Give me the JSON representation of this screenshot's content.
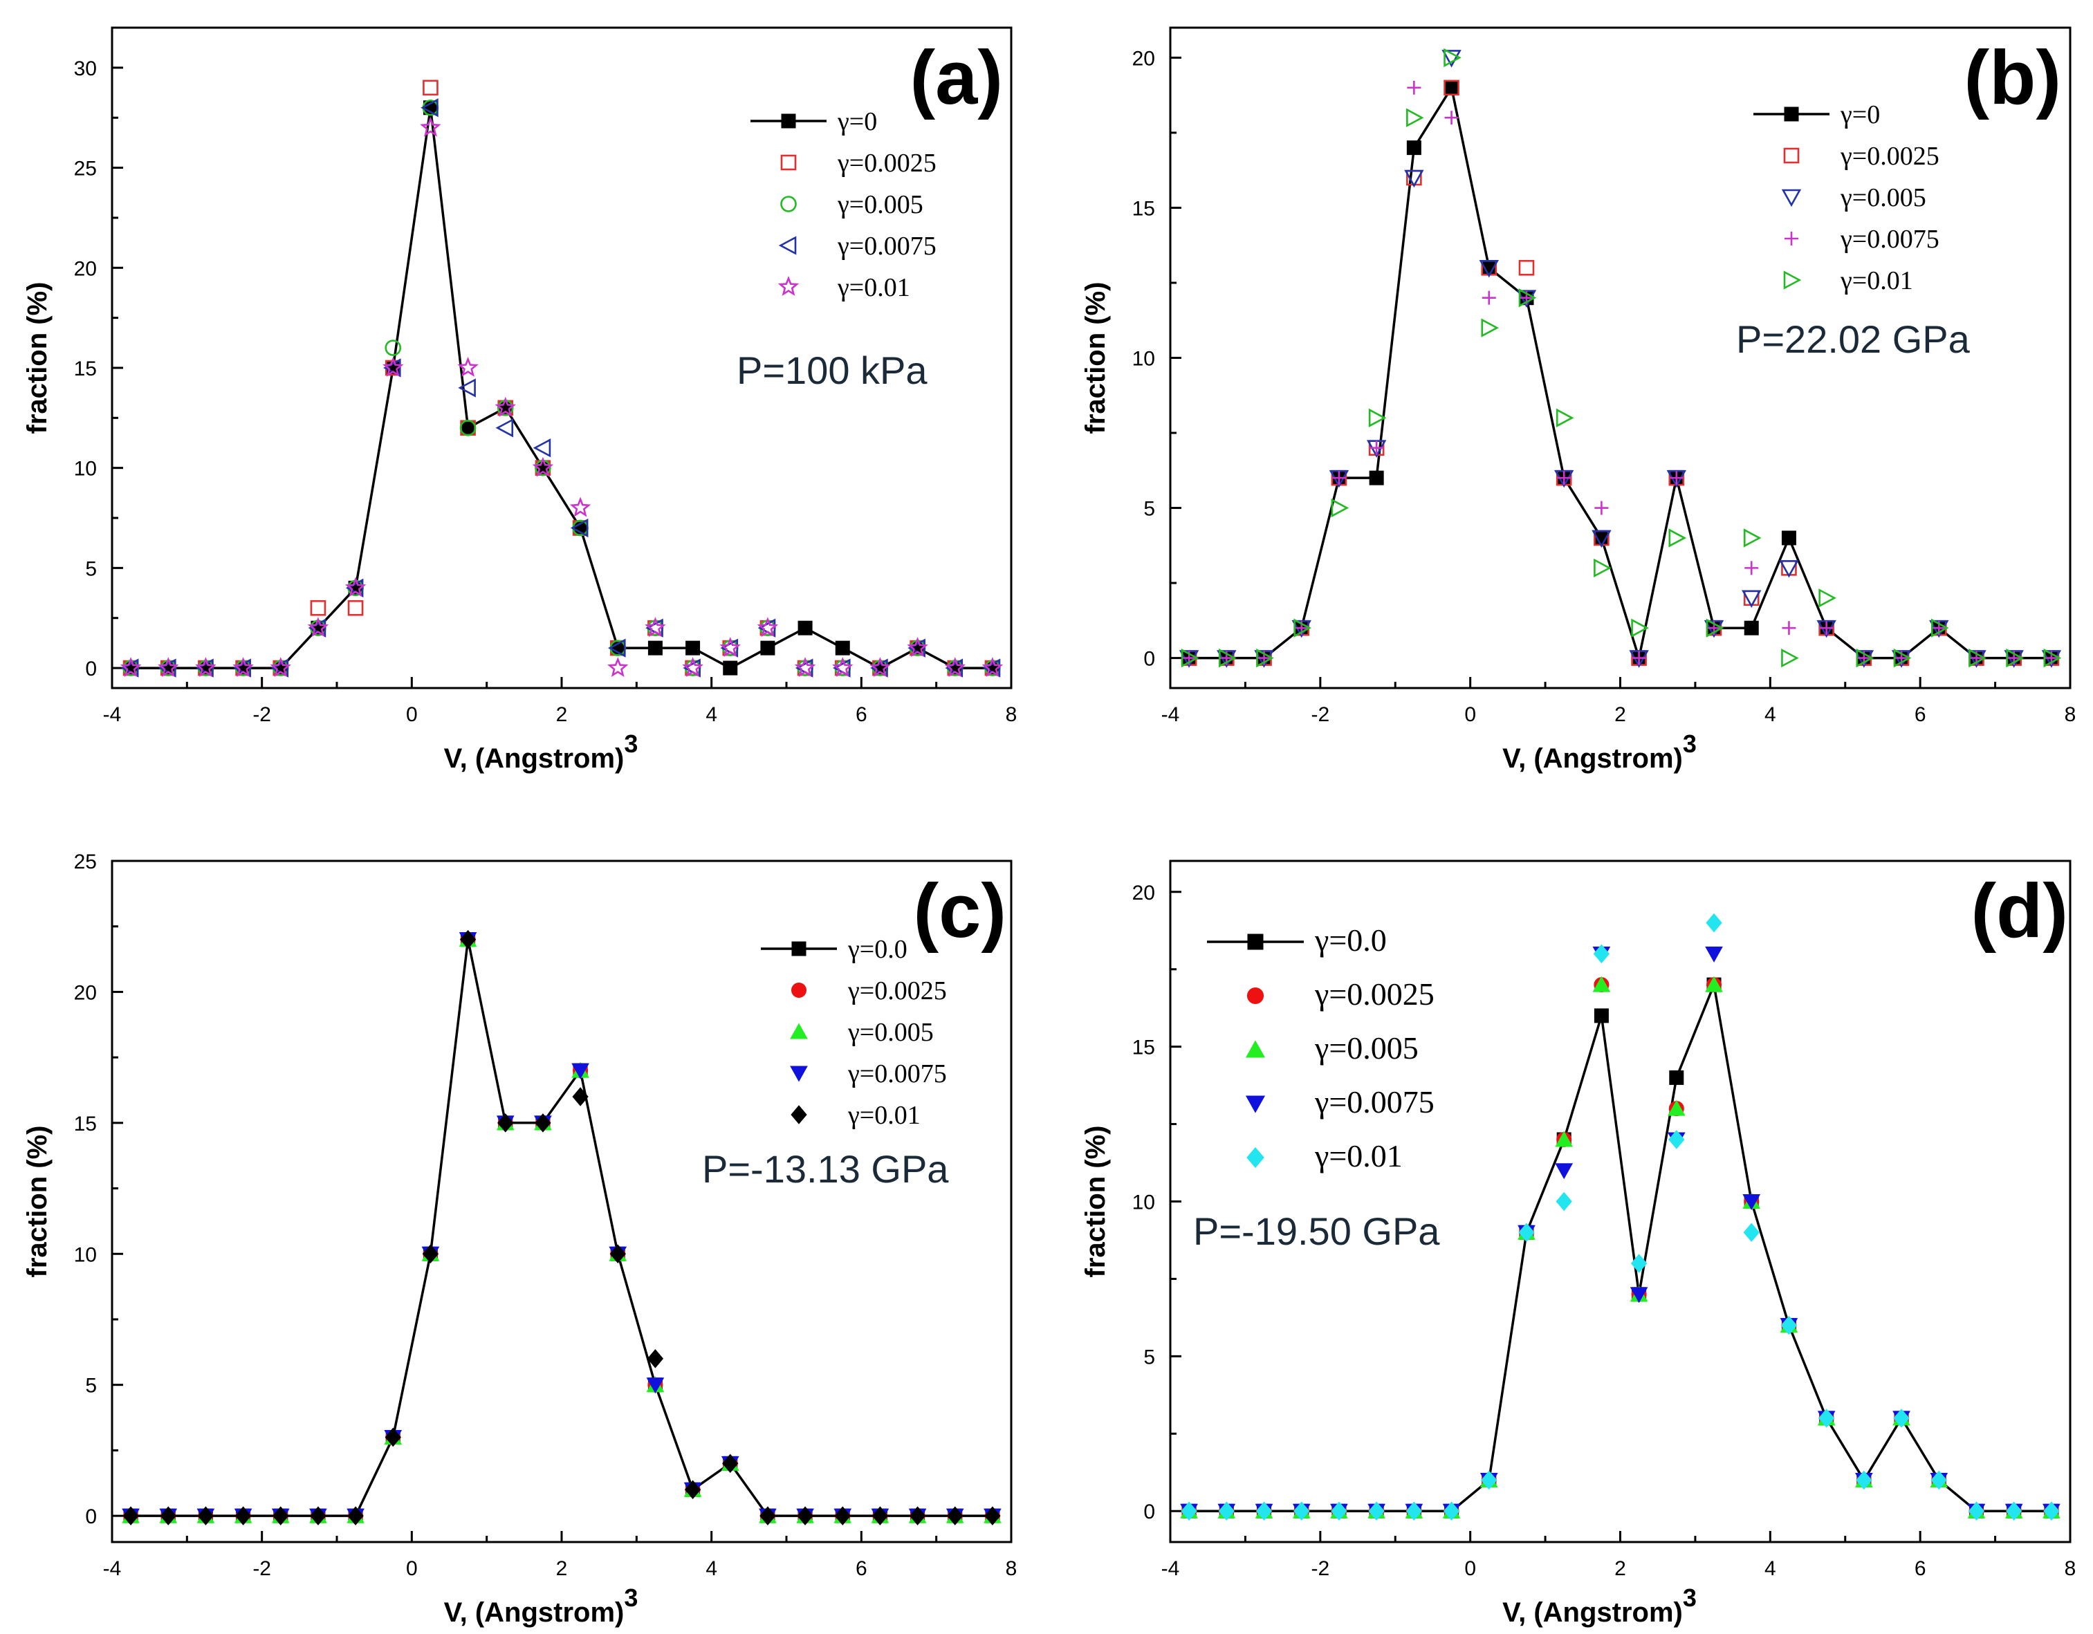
{
  "chart_data": [
    {
      "type": "line",
      "panel_label": "(a)",
      "annotation": "P=100 kPa",
      "xlabel": "V,  (Angstrom)",
      "xlabel_sup": "3",
      "ylabel": "fraction (%)",
      "xlim": [
        -4,
        8
      ],
      "ylim": [
        -1,
        32
      ],
      "xticks": [
        -4,
        -2,
        0,
        2,
        4,
        6,
        8
      ],
      "yticks": [
        0,
        5,
        10,
        15,
        20,
        25,
        30
      ],
      "legend": "top-right",
      "x": [
        -3.75,
        -3.25,
        -2.75,
        -2.25,
        -1.75,
        -1.25,
        -0.75,
        -0.25,
        0.25,
        0.75,
        1.25,
        1.75,
        2.25,
        2.75,
        3.25,
        3.75,
        4.25,
        4.75,
        5.25,
        5.75,
        6.25,
        6.75,
        7.25,
        7.75
      ],
      "series": [
        {
          "name": "γ=0",
          "marker": "square-filled",
          "color": "#000000",
          "line": true,
          "values": [
            0,
            0,
            0,
            0,
            0,
            2,
            4,
            15,
            28,
            12,
            13,
            10,
            7,
            1,
            1,
            1,
            0,
            1,
            2,
            1,
            0,
            1,
            0,
            0
          ]
        },
        {
          "name": "γ=0.0025",
          "marker": "square-open",
          "color": "#e03030",
          "line": false,
          "values": [
            0,
            0,
            0,
            0,
            0,
            3,
            3,
            15,
            29,
            12,
            13,
            10,
            7,
            1,
            2,
            0,
            1,
            2,
            0,
            0,
            0,
            1,
            0,
            0
          ]
        },
        {
          "name": "γ=0.005",
          "marker": "circle-open",
          "color": "#22bb22",
          "line": false,
          "values": [
            0,
            0,
            0,
            0,
            0,
            2,
            4,
            16,
            28,
            12,
            13,
            10,
            7,
            1,
            2,
            0,
            1,
            2,
            0,
            0,
            0,
            1,
            0,
            0
          ]
        },
        {
          "name": "γ=0.0075",
          "marker": "triangle-left-open",
          "color": "#2233aa",
          "line": false,
          "values": [
            0,
            0,
            0,
            0,
            0,
            2,
            4,
            15,
            28,
            14,
            12,
            11,
            7,
            1,
            2,
            0,
            1,
            2,
            0,
            0,
            0,
            1,
            0,
            0
          ]
        },
        {
          "name": "γ=0.01",
          "marker": "star-open",
          "color": "#cc33cc",
          "line": false,
          "values": [
            0,
            0,
            0,
            0,
            0,
            2,
            4,
            15,
            27,
            15,
            13,
            10,
            8,
            0,
            2,
            0,
            1,
            2,
            0,
            0,
            0,
            1,
            0,
            0
          ]
        }
      ]
    },
    {
      "type": "line",
      "panel_label": "(b)",
      "annotation": "P=22.02 GPa",
      "xlabel": "V,  (Angstrom)",
      "xlabel_sup": "3",
      "ylabel": "fraction (%)",
      "xlim": [
        -4,
        8
      ],
      "ylim": [
        -1,
        21
      ],
      "xticks": [
        -4,
        -2,
        0,
        2,
        4,
        6,
        8
      ],
      "yticks": [
        0,
        5,
        10,
        15,
        20
      ],
      "legend": "top-right",
      "x": [
        -3.75,
        -3.25,
        -2.75,
        -2.25,
        -1.75,
        -1.25,
        -0.75,
        -0.25,
        0.25,
        0.75,
        1.25,
        1.75,
        2.25,
        2.75,
        3.25,
        3.75,
        4.25,
        4.75,
        5.25,
        5.75,
        6.25,
        6.75,
        7.25,
        7.75
      ],
      "series": [
        {
          "name": "γ=0",
          "marker": "square-filled",
          "color": "#000000",
          "line": true,
          "values": [
            0,
            0,
            0,
            1,
            6,
            6,
            17,
            19,
            13,
            12,
            6,
            4,
            0,
            6,
            1,
            1,
            4,
            1,
            0,
            0,
            1,
            0,
            0,
            0
          ]
        },
        {
          "name": "γ=0.0025",
          "marker": "square-open",
          "color": "#e03030",
          "line": false,
          "values": [
            0,
            0,
            0,
            1,
            6,
            7,
            16,
            19,
            13,
            13,
            6,
            4,
            0,
            6,
            1,
            2,
            3,
            1,
            0,
            0,
            1,
            0,
            0,
            0
          ]
        },
        {
          "name": "γ=0.005",
          "marker": "triangle-down-open",
          "color": "#2233aa",
          "line": false,
          "values": [
            0,
            0,
            0,
            1,
            6,
            7,
            16,
            20,
            13,
            12,
            6,
            4,
            0,
            6,
            1,
            2,
            3,
            1,
            0,
            0,
            1,
            0,
            0,
            0
          ]
        },
        {
          "name": "γ=0.0075",
          "marker": "plus",
          "color": "#cc33cc",
          "line": false,
          "values": [
            0,
            0,
            0,
            1,
            6,
            7,
            19,
            18,
            12,
            12,
            6,
            5,
            0,
            6,
            1,
            3,
            1,
            1,
            0,
            0,
            1,
            0,
            0,
            0
          ]
        },
        {
          "name": "γ=0.01",
          "marker": "triangle-right-open",
          "color": "#22bb22",
          "line": false,
          "values": [
            0,
            0,
            0,
            1,
            5,
            8,
            18,
            20,
            11,
            12,
            8,
            3,
            1,
            4,
            1,
            4,
            0,
            2,
            0,
            0,
            1,
            0,
            0,
            0
          ]
        }
      ]
    },
    {
      "type": "line",
      "panel_label": "(c)",
      "annotation": "P=-13.13 GPa",
      "xlabel": "V,  (Angstrom)",
      "xlabel_sup": "3",
      "ylabel": "fraction (%)",
      "xlim": [
        -4,
        8
      ],
      "ylim": [
        -1,
        25
      ],
      "xticks": [
        -4,
        -2,
        0,
        2,
        4,
        6,
        8
      ],
      "yticks": [
        0,
        5,
        10,
        15,
        20,
        25
      ],
      "legend": "top-right",
      "x": [
        -3.75,
        -3.25,
        -2.75,
        -2.25,
        -1.75,
        -1.25,
        -0.75,
        -0.25,
        0.25,
        0.75,
        1.25,
        1.75,
        2.25,
        2.75,
        3.25,
        3.75,
        4.25,
        4.75,
        5.25,
        5.75,
        6.25,
        6.75,
        7.25,
        7.75
      ],
      "series": [
        {
          "name": "γ=0.0",
          "marker": "square-filled",
          "color": "#000000",
          "line": true,
          "values": [
            0,
            0,
            0,
            0,
            0,
            0,
            0,
            3,
            10,
            22,
            15,
            15,
            17,
            10,
            5,
            1,
            2,
            0,
            0,
            0,
            0,
            0,
            0,
            0
          ]
        },
        {
          "name": "γ=0.0025",
          "marker": "circle-filled",
          "color": "#ee1111",
          "line": false,
          "values": [
            0,
            0,
            0,
            0,
            0,
            0,
            0,
            3,
            10,
            22,
            15,
            15,
            17,
            10,
            5,
            1,
            2,
            0,
            0,
            0,
            0,
            0,
            0,
            0
          ]
        },
        {
          "name": "γ=0.005",
          "marker": "triangle-up-filled",
          "color": "#22ee22",
          "line": false,
          "values": [
            0,
            0,
            0,
            0,
            0,
            0,
            0,
            3,
            10,
            22,
            15,
            15,
            17,
            10,
            5,
            1,
            2,
            0,
            0,
            0,
            0,
            0,
            0,
            0
          ]
        },
        {
          "name": "γ=0.0075",
          "marker": "triangle-down-filled",
          "color": "#1111dd",
          "line": false,
          "values": [
            0,
            0,
            0,
            0,
            0,
            0,
            0,
            3,
            10,
            22,
            15,
            15,
            17,
            10,
            5,
            1,
            2,
            0,
            0,
            0,
            0,
            0,
            0,
            0
          ]
        },
        {
          "name": "γ=0.01",
          "marker": "diamond-filled",
          "color": "#000000",
          "line": false,
          "values": [
            0,
            0,
            0,
            0,
            0,
            0,
            0,
            3,
            10,
            22,
            15,
            15,
            16,
            10,
            6,
            1,
            2,
            0,
            0,
            0,
            0,
            0,
            0,
            0
          ]
        }
      ]
    },
    {
      "type": "line",
      "panel_label": "(d)",
      "annotation": "P=-19.50 GPa",
      "xlabel": "V,  (Angstrom)",
      "xlabel_sup": "3",
      "ylabel": "fraction (%)",
      "xlim": [
        -4,
        8
      ],
      "ylim": [
        -1,
        21
      ],
      "xticks": [
        -4,
        -2,
        0,
        2,
        4,
        6,
        8
      ],
      "yticks": [
        0,
        5,
        10,
        15,
        20
      ],
      "legend": "top-left",
      "x": [
        -3.75,
        -3.25,
        -2.75,
        -2.25,
        -1.75,
        -1.25,
        -0.75,
        -0.25,
        0.25,
        0.75,
        1.25,
        1.75,
        2.25,
        2.75,
        3.25,
        3.75,
        4.25,
        4.75,
        5.25,
        5.75,
        6.25,
        6.75,
        7.25,
        7.75
      ],
      "series": [
        {
          "name": "γ=0.0",
          "marker": "square-filled",
          "color": "#000000",
          "line": true,
          "values": [
            0,
            0,
            0,
            0,
            0,
            0,
            0,
            0,
            1,
            9,
            12,
            16,
            7,
            14,
            17,
            10,
            6,
            3,
            1,
            3,
            1,
            0,
            0,
            0
          ]
        },
        {
          "name": "γ=0.0025",
          "marker": "circle-filled",
          "color": "#ee1111",
          "line": false,
          "values": [
            0,
            0,
            0,
            0,
            0,
            0,
            0,
            0,
            1,
            9,
            12,
            17,
            7,
            13,
            17,
            10,
            6,
            3,
            1,
            3,
            1,
            0,
            0,
            0
          ]
        },
        {
          "name": "γ=0.005",
          "marker": "triangle-up-filled",
          "color": "#22ee22",
          "line": false,
          "values": [
            0,
            0,
            0,
            0,
            0,
            0,
            0,
            0,
            1,
            9,
            12,
            17,
            7,
            13,
            17,
            10,
            6,
            3,
            1,
            3,
            1,
            0,
            0,
            0
          ]
        },
        {
          "name": "γ=0.0075",
          "marker": "triangle-down-filled",
          "color": "#1111dd",
          "line": false,
          "values": [
            0,
            0,
            0,
            0,
            0,
            0,
            0,
            0,
            1,
            9,
            11,
            18,
            7,
            12,
            18,
            10,
            6,
            3,
            1,
            3,
            1,
            0,
            0,
            0
          ]
        },
        {
          "name": "γ=0.01",
          "marker": "diamond-filled",
          "color": "#22e5f0",
          "line": false,
          "values": [
            0,
            0,
            0,
            0,
            0,
            0,
            0,
            0,
            1,
            9,
            10,
            18,
            8,
            12,
            19,
            9,
            6,
            3,
            1,
            3,
            1,
            0,
            0,
            0
          ]
        }
      ]
    }
  ]
}
